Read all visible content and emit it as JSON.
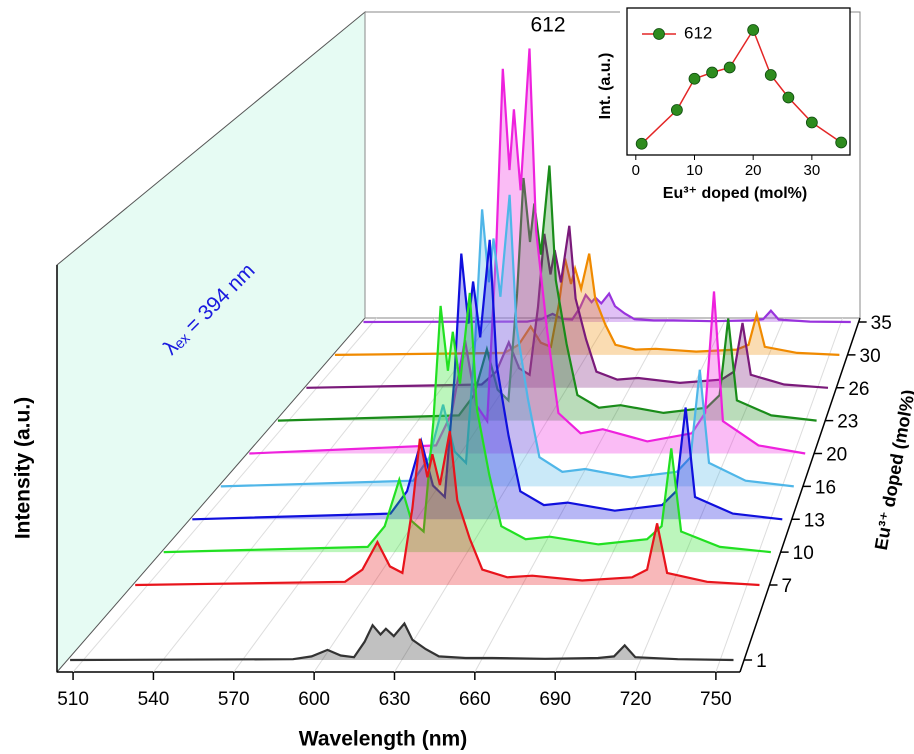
{
  "chart_data": [
    {
      "type": "waterfall",
      "x_label": "Wavelength (nm)",
      "y_label": "Intensity (a.u.)",
      "z_label": "Eu³⁺ doped (mol%)",
      "annotations": [
        "612",
        "λₑₓ = 394 nm"
      ],
      "xlim": [
        504,
        759
      ],
      "xticks": [
        510,
        540,
        570,
        600,
        630,
        660,
        690,
        720,
        750
      ],
      "ylim": [
        0,
        100
      ],
      "x": [
        505,
        589,
        596,
        602,
        607,
        612,
        616,
        619,
        622,
        624,
        627,
        631,
        634,
        639,
        644,
        654,
        664,
        684,
        704,
        710,
        714,
        718,
        734,
        755
      ],
      "series": [
        {
          "name": "1",
          "color": "#333333",
          "values": [
            0,
            0.2,
            0.9,
            2.5,
            1.1,
            0.7,
            4.5,
            8.6,
            6.3,
            7.7,
            5.9,
            9,
            5,
            2.7,
            0.9,
            0.5,
            0.5,
            0.3,
            0.5,
            0.9,
            3.6,
            0.7,
            0.2,
            0
          ]
        },
        {
          "name": "7",
          "color": "#e8141c",
          "values": [
            0,
            0.8,
            3.8,
            10.6,
            4.6,
            3,
            19,
            36.1,
            26.6,
            32.3,
            24.7,
            38,
            20.9,
            11.4,
            3.8,
            1.9,
            2.3,
            1.1,
            1.9,
            3.8,
            15.2,
            3,
            0.8,
            0
          ]
        },
        {
          "name": "10",
          "color": "#22e022",
          "values": [
            0,
            1.3,
            6.4,
            17.9,
            7.7,
            5.1,
            32,
            60.8,
            44.8,
            54.4,
            41.6,
            64,
            35.2,
            19.2,
            6.4,
            3.2,
            3.8,
            1.9,
            3.2,
            6.4,
            25.6,
            5.1,
            1.3,
            0
          ]
        },
        {
          "name": "13",
          "color": "#1010dd",
          "values": [
            0,
            1.4,
            6.9,
            19.3,
            8.3,
            5.5,
            34.5,
            65.6,
            48.3,
            58.7,
            44.9,
            69,
            38,
            20.7,
            6.9,
            3.5,
            4.1,
            2.1,
            3.5,
            6.9,
            27.6,
            5.5,
            1.4,
            0
          ]
        },
        {
          "name": "16",
          "color": "#4fb6e8",
          "values": [
            0,
            1.4,
            7.2,
            20.2,
            8.6,
            5.8,
            36,
            68.4,
            50.4,
            61.2,
            46.8,
            72,
            39.6,
            21.6,
            7.2,
            3.6,
            4.3,
            2.2,
            3.6,
            7.2,
            28.8,
            5.8,
            1.4,
            0
          ]
        },
        {
          "name": "20",
          "color": "#ee22dd",
          "values": [
            0,
            2,
            10,
            28,
            12,
            8,
            50,
            95,
            70,
            85,
            65,
            100,
            55,
            30,
            10,
            5,
            6,
            3,
            5,
            10,
            40,
            8,
            2,
            0
          ]
        },
        {
          "name": "23",
          "color": "#1a8c1a",
          "values": [
            0,
            1.3,
            6.3,
            17.6,
            7.6,
            5,
            31.5,
            59.9,
            44.1,
            53.6,
            41,
            63,
            34.7,
            18.9,
            6.3,
            3.2,
            3.8,
            1.9,
            3.2,
            6.3,
            25.2,
            5,
            1.3,
            0
          ]
        },
        {
          "name": "26",
          "color": "#7a1a7a",
          "values": [
            0,
            0.8,
            4,
            11.2,
            4.8,
            3.2,
            20,
            38,
            28,
            34,
            26,
            40,
            22,
            12,
            4,
            2,
            2.4,
            1.2,
            2,
            4,
            16,
            3.2,
            0.8,
            0
          ]
        },
        {
          "name": "30",
          "color": "#f08a00",
          "values": [
            0,
            0.5,
            2.5,
            7,
            3,
            2,
            12.5,
            23.8,
            17.5,
            21.3,
            16.3,
            25,
            13.8,
            7.5,
            2.5,
            1.3,
            1.5,
            0.8,
            1.3,
            2.5,
            10,
            2,
            0.5,
            0
          ]
        },
        {
          "name": "35",
          "color": "#9933dd",
          "values": [
            0,
            0.1,
            0.7,
            2,
            0.8,
            0.6,
            3.5,
            6.7,
            4.9,
            6,
            4.6,
            7,
            3.9,
            2.1,
            0.7,
            0.4,
            0.4,
            0.2,
            0.4,
            0.7,
            2.8,
            0.6,
            0.1,
            0
          ]
        }
      ]
    },
    {
      "type": "line",
      "x_label": "Eu³⁺ doped (mol%)",
      "y_label": "Int. (a.u.)",
      "xlim": [
        -1.5,
        36.5
      ],
      "xticks": [
        0,
        10,
        20,
        30
      ],
      "ylim": [
        0,
        1.12
      ],
      "x": [
        1,
        7,
        10,
        13,
        16,
        20,
        23,
        26,
        30,
        35
      ],
      "series": [
        {
          "name": "612",
          "color": "#e32626",
          "marker_color": "#2e8b1e",
          "values": [
            0.09,
            0.36,
            0.61,
            0.66,
            0.7,
            1.0,
            0.64,
            0.46,
            0.26,
            0.1
          ]
        }
      ]
    }
  ]
}
